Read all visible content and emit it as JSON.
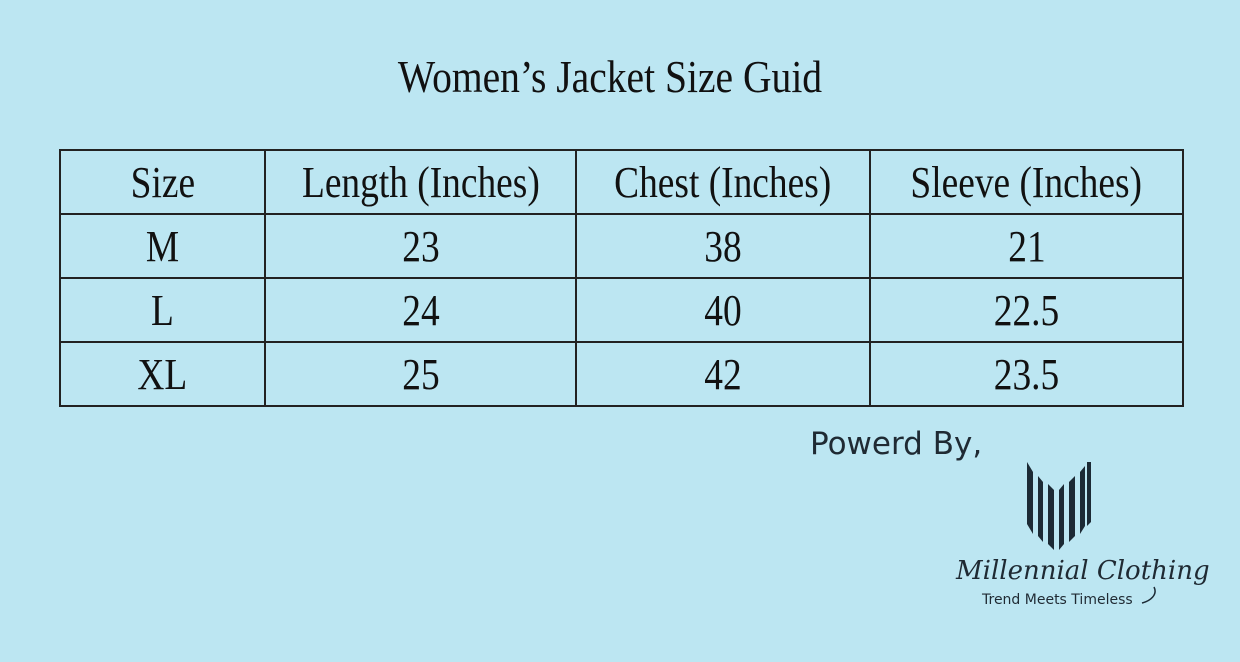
{
  "title": "Women’s Jacket Size Guid",
  "table": {
    "headers": [
      "Size",
      "Length (Inches)",
      "Chest (Inches)",
      "Sleeve (Inches)"
    ],
    "rows": [
      [
        "M",
        "23",
        "38",
        "21"
      ],
      [
        "L",
        "24",
        "40",
        "22.5"
      ],
      [
        "XL",
        "25",
        "42",
        "23.5"
      ]
    ]
  },
  "footer": {
    "powered_by": "Powerd By,",
    "brand_name": "Millennial Clothing",
    "tagline": "Trend Meets Timeless",
    "logo_icon": "barcode-m-logo-icon"
  },
  "colors": {
    "background": "#bce6f2",
    "logo": "#1c2a35",
    "text": "#111111"
  }
}
